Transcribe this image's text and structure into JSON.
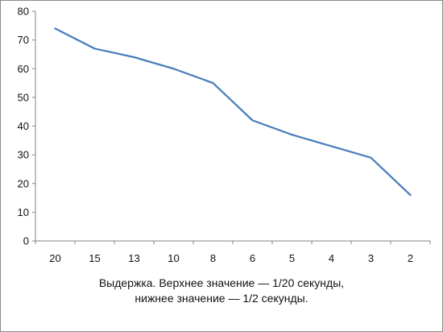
{
  "chart_data": {
    "type": "line",
    "categories": [
      "20",
      "15",
      "13",
      "10",
      "8",
      "6",
      "5",
      "4",
      "3",
      "2"
    ],
    "series": [
      {
        "values": [
          74,
          67,
          64,
          60,
          55,
          42,
          37,
          33,
          29,
          16
        ]
      }
    ],
    "ylim": [
      0,
      80
    ],
    "yticks": [
      0,
      10,
      20,
      30,
      40,
      50,
      60,
      70,
      80
    ],
    "xlabel_lines": [
      "Выдержка. Верхнее значение — 1/20 секунды,",
      "нижнее значение — 1/2 секунды."
    ],
    "grid": false,
    "legend": "none",
    "colors": {
      "series": "#4a7ebb",
      "axis": "#868686"
    }
  }
}
